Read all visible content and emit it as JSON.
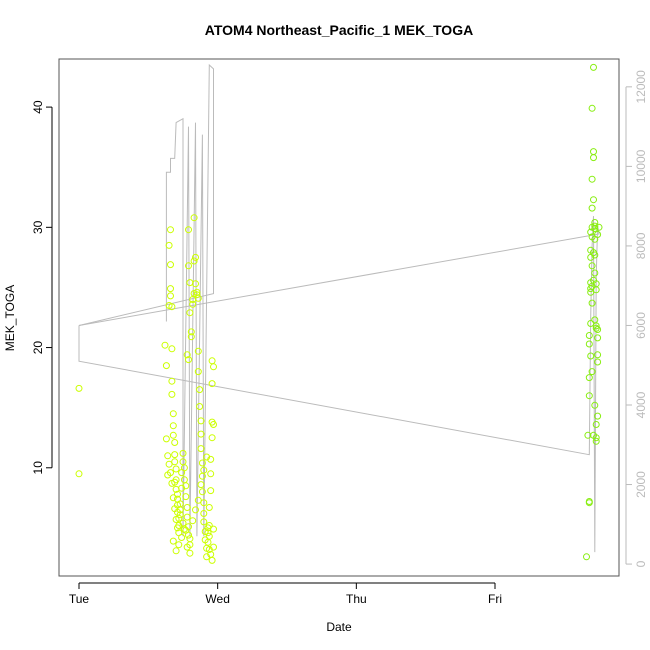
{
  "chart_data": {
    "type": "scatter",
    "title": "ATOM4 Northeast_Pacific_1 MEK_TOGA",
    "xlabel": "Date",
    "ylabel": "MEK_TOGA",
    "x_ticks": [
      "Tue",
      "Wed",
      "Thu",
      "Fri"
    ],
    "xlim_days": [
      -0.1,
      3.9
    ],
    "ylim": [
      1.0,
      44.0
    ],
    "y_ticks": [
      10,
      20,
      30,
      40
    ],
    "y2lim": [
      -300,
      12700
    ],
    "y2_ticks": [
      0,
      2000,
      4000,
      6000,
      8000,
      10000,
      12000
    ],
    "colors": {
      "points_start": "#ccff00",
      "points_end": "#88ee11",
      "altitude_line": "#bbbbbb",
      "frame": "#555555"
    },
    "altitude_series": [
      [
        0.0,
        6000
      ],
      [
        0.0,
        5100
      ],
      [
        3.68,
        2750
      ],
      [
        3.69,
        6200
      ],
      [
        3.7,
        8000
      ],
      [
        3.71,
        8750
      ],
      [
        3.72,
        300
      ],
      [
        3.73,
        7200
      ],
      [
        3.74,
        8500
      ],
      [
        3.75,
        8300
      ],
      [
        0.0,
        6000
      ]
    ],
    "altitude_series_b": [
      [
        0.63,
        6100
      ],
      [
        0.63,
        9850
      ],
      [
        0.66,
        9850
      ],
      [
        0.66,
        10200
      ],
      [
        0.69,
        10200
      ],
      [
        0.7,
        11100
      ],
      [
        0.75,
        11200
      ],
      [
        0.75,
        700
      ],
      [
        0.79,
        11000
      ],
      [
        0.8,
        700
      ],
      [
        0.84,
        11100
      ],
      [
        0.85,
        700
      ],
      [
        0.89,
        10800
      ],
      [
        0.9,
        700
      ],
      [
        0.94,
        12550
      ],
      [
        0.97,
        12450
      ],
      [
        0.97,
        6800
      ],
      [
        0.0,
        6000
      ]
    ],
    "points": [
      [
        0.0,
        16.6
      ],
      [
        0.0,
        9.5
      ],
      [
        0.62,
        20.2
      ],
      [
        0.63,
        18.5
      ],
      [
        0.63,
        12.4
      ],
      [
        0.64,
        11.0
      ],
      [
        0.64,
        9.4
      ],
      [
        0.65,
        23.5
      ],
      [
        0.65,
        28.5
      ],
      [
        0.66,
        29.8
      ],
      [
        0.66,
        24.9
      ],
      [
        0.66,
        24.3
      ],
      [
        0.66,
        26.9
      ],
      [
        0.67,
        23.4
      ],
      [
        0.67,
        19.9
      ],
      [
        0.67,
        17.2
      ],
      [
        0.67,
        16.1
      ],
      [
        0.68,
        14.5
      ],
      [
        0.68,
        13.5
      ],
      [
        0.68,
        12.7
      ],
      [
        0.69,
        12.1
      ],
      [
        0.69,
        11.1
      ],
      [
        0.69,
        10.5
      ],
      [
        0.7,
        9.9
      ],
      [
        0.7,
        9.0
      ],
      [
        0.7,
        8.2
      ],
      [
        0.71,
        7.4
      ],
      [
        0.71,
        6.9
      ],
      [
        0.71,
        6.3
      ],
      [
        0.72,
        5.8
      ],
      [
        0.72,
        5.2
      ],
      [
        0.72,
        4.6
      ],
      [
        0.73,
        6.1
      ],
      [
        0.73,
        7.0
      ],
      [
        0.74,
        8.3
      ],
      [
        0.74,
        9.6
      ],
      [
        0.75,
        10.5
      ],
      [
        0.75,
        11.2
      ],
      [
        0.76,
        10.0
      ],
      [
        0.76,
        9.0
      ],
      [
        0.77,
        8.5
      ],
      [
        0.77,
        7.6
      ],
      [
        0.78,
        6.7
      ],
      [
        0.78,
        5.9
      ],
      [
        0.79,
        5.1
      ],
      [
        0.79,
        4.4
      ],
      [
        0.8,
        3.6
      ],
      [
        0.8,
        2.9
      ],
      [
        0.78,
        19.4
      ],
      [
        0.79,
        19.0
      ],
      [
        0.79,
        26.8
      ],
      [
        0.79,
        29.8
      ],
      [
        0.8,
        25.4
      ],
      [
        0.8,
        22.9
      ],
      [
        0.81,
        21.3
      ],
      [
        0.81,
        20.9
      ],
      [
        0.82,
        23.6
      ],
      [
        0.82,
        24.0
      ],
      [
        0.83,
        24.5
      ],
      [
        0.83,
        27.2
      ],
      [
        0.83,
        30.8
      ],
      [
        0.84,
        27.5
      ],
      [
        0.84,
        25.3
      ],
      [
        0.85,
        24.4
      ],
      [
        0.85,
        24.6
      ],
      [
        0.86,
        24.1
      ],
      [
        0.86,
        19.7
      ],
      [
        0.86,
        18.0
      ],
      [
        0.87,
        16.5
      ],
      [
        0.87,
        15.1
      ],
      [
        0.88,
        13.9
      ],
      [
        0.88,
        12.8
      ],
      [
        0.88,
        11.6
      ],
      [
        0.89,
        10.4
      ],
      [
        0.89,
        9.3
      ],
      [
        0.89,
        8.0
      ],
      [
        0.9,
        7.1
      ],
      [
        0.9,
        6.2
      ],
      [
        0.9,
        5.5
      ],
      [
        0.91,
        4.7
      ],
      [
        0.91,
        4.0
      ],
      [
        0.92,
        3.3
      ],
      [
        0.92,
        2.6
      ],
      [
        0.93,
        3.8
      ],
      [
        0.93,
        4.6
      ],
      [
        0.94,
        5.2
      ],
      [
        0.94,
        6.7
      ],
      [
        0.95,
        8.1
      ],
      [
        0.95,
        9.5
      ],
      [
        0.95,
        10.7
      ],
      [
        0.96,
        12.5
      ],
      [
        0.96,
        13.8
      ],
      [
        0.96,
        17.0
      ],
      [
        0.96,
        18.9
      ],
      [
        0.97,
        18.4
      ],
      [
        0.97,
        13.6
      ],
      [
        0.97,
        4.9
      ],
      [
        0.97,
        3.4
      ],
      [
        0.96,
        2.3
      ],
      [
        0.95,
        2.8
      ],
      [
        0.94,
        3.2
      ],
      [
        0.94,
        4.3
      ],
      [
        0.93,
        5.0
      ],
      [
        0.68,
        3.9
      ],
      [
        0.7,
        3.1
      ],
      [
        0.72,
        3.6
      ],
      [
        0.74,
        4.2
      ],
      [
        0.76,
        4.9
      ],
      [
        0.78,
        3.4
      ],
      [
        0.8,
        4.1
      ],
      [
        0.82,
        5.6
      ],
      [
        0.84,
        6.5
      ],
      [
        0.86,
        7.3
      ],
      [
        0.88,
        8.6
      ],
      [
        0.9,
        9.8
      ],
      [
        0.92,
        10.9
      ],
      [
        0.69,
        8.8
      ],
      [
        0.71,
        7.8
      ],
      [
        0.73,
        6.5
      ],
      [
        0.75,
        5.4
      ],
      [
        0.77,
        4.8
      ],
      [
        0.65,
        10.3
      ],
      [
        0.66,
        9.6
      ],
      [
        0.67,
        8.7
      ],
      [
        0.68,
        7.5
      ],
      [
        0.69,
        6.6
      ],
      [
        0.7,
        5.7
      ],
      [
        0.71,
        5.0
      ],
      [
        3.66,
        2.6
      ],
      [
        3.68,
        7.2
      ],
      [
        3.68,
        7.1
      ],
      [
        3.67,
        12.7
      ],
      [
        3.68,
        17.5
      ],
      [
        3.68,
        16.0
      ],
      [
        3.68,
        21.0
      ],
      [
        3.68,
        20.3
      ],
      [
        3.69,
        19.3
      ],
      [
        3.69,
        22.0
      ],
      [
        3.69,
        24.9
      ],
      [
        3.69,
        25.4
      ],
      [
        3.69,
        27.5
      ],
      [
        3.69,
        28.1
      ],
      [
        3.7,
        29.2
      ],
      [
        3.7,
        30.0
      ],
      [
        3.7,
        31.6
      ],
      [
        3.7,
        34.0
      ],
      [
        3.7,
        39.9
      ],
      [
        3.71,
        43.3
      ],
      [
        3.71,
        36.3
      ],
      [
        3.71,
        35.8
      ],
      [
        3.71,
        32.3
      ],
      [
        3.72,
        30.4
      ],
      [
        3.72,
        29.9
      ],
      [
        3.72,
        29.0
      ],
      [
        3.72,
        27.7
      ],
      [
        3.72,
        26.2
      ],
      [
        3.73,
        25.3
      ],
      [
        3.73,
        24.8
      ],
      [
        3.73,
        21.6
      ],
      [
        3.73,
        21.8
      ],
      [
        3.74,
        21.5
      ],
      [
        3.74,
        20.8
      ],
      [
        3.74,
        19.4
      ],
      [
        3.74,
        18.8
      ],
      [
        3.74,
        14.3
      ],
      [
        3.73,
        13.6
      ],
      [
        3.73,
        12.5
      ],
      [
        3.73,
        12.2
      ],
      [
        3.72,
        15.2
      ],
      [
        3.71,
        12.7
      ],
      [
        3.7,
        25.1
      ],
      [
        3.71,
        25.6
      ],
      [
        3.7,
        26.8
      ],
      [
        3.71,
        27.9
      ],
      [
        3.69,
        29.6
      ],
      [
        3.72,
        30.1
      ],
      [
        3.75,
        30.0
      ],
      [
        3.74,
        29.4
      ],
      [
        3.69,
        24.6
      ],
      [
        3.7,
        23.7
      ],
      [
        3.72,
        22.3
      ],
      [
        3.7,
        18.0
      ]
    ]
  }
}
